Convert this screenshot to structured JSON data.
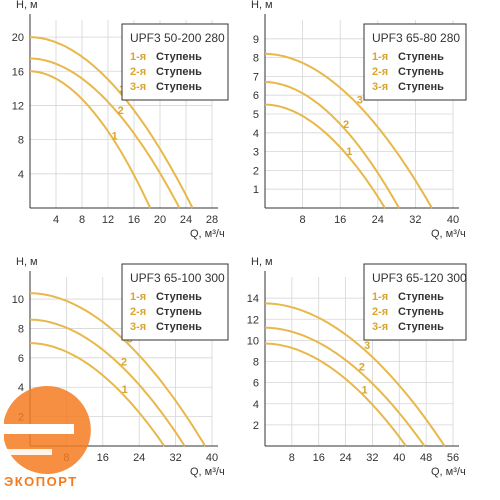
{
  "colors": {
    "curve": "#e8b84a",
    "curve_label": "#d9a531",
    "grid": "#d6d6d6",
    "axis": "#333333",
    "text": "#333333",
    "legend_border": "#333333",
    "logo_orange": "#f47b20"
  },
  "logo": {
    "text": "ЭКОПОРТ"
  },
  "chart_data": [
    {
      "type": "line",
      "title": "UPF3 50-200 280",
      "ylabel": "H, м",
      "xlabel": "Q, м³/ч",
      "xlim": [
        0,
        28
      ],
      "ylim": [
        0,
        22
      ],
      "xticks": [
        4,
        8,
        12,
        16,
        20,
        24,
        28
      ],
      "yticks": [
        4,
        8,
        12,
        16,
        20
      ],
      "grid": true,
      "legend": [
        {
          "num": "1-я",
          "text": "Ступень"
        },
        {
          "num": "2-я",
          "text": "Ступень"
        },
        {
          "num": "3-я",
          "text": "Ступень"
        }
      ],
      "series": [
        {
          "name": "1",
          "x": [
            0,
            6,
            12,
            18.5
          ],
          "y": [
            16,
            13.8,
            8.7,
            0
          ]
        },
        {
          "name": "2",
          "x": [
            0,
            8,
            16,
            23
          ],
          "y": [
            17.5,
            14.8,
            8.6,
            0
          ]
        },
        {
          "name": "3",
          "x": [
            0,
            8,
            16,
            25
          ],
          "y": [
            20,
            17.6,
            11.7,
            0
          ]
        }
      ]
    },
    {
      "type": "line",
      "title": "UPF3 65-80 280",
      "ylabel": "H, м",
      "xlabel": "Q, м³/ч",
      "xlim": [
        0,
        40
      ],
      "ylim": [
        0,
        10
      ],
      "xticks": [
        8,
        16,
        24,
        32,
        40
      ],
      "yticks": [
        1,
        2,
        3,
        4,
        5,
        6,
        7,
        8,
        9
      ],
      "grid": true,
      "legend": [
        {
          "num": "1-я",
          "text": "Ступень"
        },
        {
          "num": "2-я",
          "text": "Ступень"
        },
        {
          "num": "3-я",
          "text": "Ступень"
        }
      ],
      "series": [
        {
          "name": "1",
          "x": [
            0,
            8,
            16,
            25.5
          ],
          "y": [
            5.5,
            4.5,
            2.9,
            0
          ]
        },
        {
          "name": "2",
          "x": [
            0,
            8,
            16,
            28.5
          ],
          "y": [
            6.7,
            5.7,
            4.1,
            0
          ]
        },
        {
          "name": "3",
          "x": [
            0,
            12,
            24,
            35.5
          ],
          "y": [
            8.2,
            7.3,
            4.6,
            0
          ]
        }
      ]
    },
    {
      "type": "line",
      "title": "UPF3 65-100 300",
      "ylabel": "H, м",
      "xlabel": "Q, м³/ч",
      "xlim": [
        0,
        40
      ],
      "ylim": [
        0,
        11.5
      ],
      "xticks": [
        8,
        16,
        24,
        32,
        40
      ],
      "yticks": [
        2,
        4,
        6,
        8,
        10
      ],
      "grid": true,
      "legend": [
        {
          "num": "1-я",
          "text": "Ступень"
        },
        {
          "num": "2-я",
          "text": "Ступень"
        },
        {
          "num": "3-я",
          "text": "Ступень"
        }
      ],
      "series": [
        {
          "name": "1",
          "x": [
            0,
            10,
            20,
            29.5
          ],
          "y": [
            7,
            5.8,
            3.6,
            0
          ]
        },
        {
          "name": "2",
          "x": [
            0,
            10,
            20,
            34
          ],
          "y": [
            8.6,
            7.5,
            5.4,
            0
          ]
        },
        {
          "name": "3",
          "x": [
            0,
            12,
            24,
            38.5
          ],
          "y": [
            10.4,
            9.1,
            6.3,
            0
          ]
        }
      ]
    },
    {
      "type": "line",
      "title": "UPF3 65-120 300",
      "ylabel": "H, м",
      "xlabel": "Q, м³/ч",
      "xlim": [
        0,
        56
      ],
      "ylim": [
        0,
        16
      ],
      "xticks": [
        8,
        16,
        24,
        32,
        40,
        48,
        56
      ],
      "yticks": [
        2,
        4,
        6,
        8,
        10,
        12,
        14
      ],
      "grid": true,
      "legend": [
        {
          "num": "1-я",
          "text": "Ступень"
        },
        {
          "num": "2-я",
          "text": "Ступень"
        },
        {
          "num": "3-я",
          "text": "Ступень"
        }
      ],
      "series": [
        {
          "name": "1",
          "x": [
            0,
            14,
            28,
            42
          ],
          "y": [
            9.7,
            8.2,
            5.4,
            0
          ]
        },
        {
          "name": "2",
          "x": [
            0,
            14,
            28,
            47.5
          ],
          "y": [
            11.2,
            9.8,
            7.2,
            0
          ]
        },
        {
          "name": "3",
          "x": [
            0,
            16,
            32,
            53.5
          ],
          "y": [
            13.5,
            12.1,
            8.6,
            0
          ]
        }
      ]
    }
  ]
}
